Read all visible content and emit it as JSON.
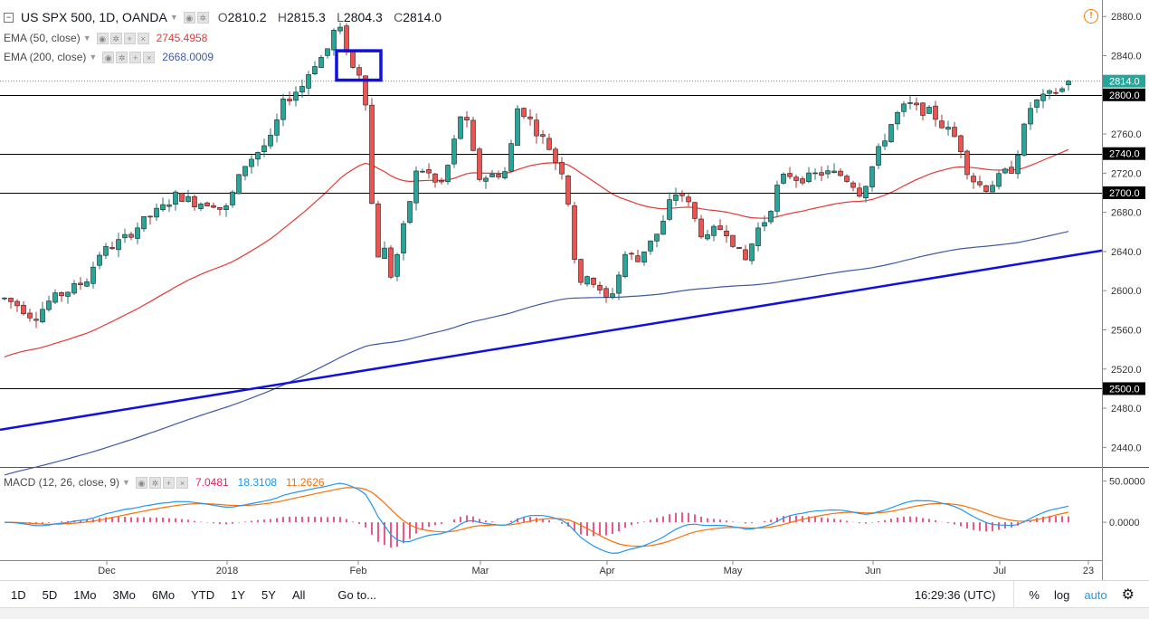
{
  "symbol": {
    "title": "US SPX 500, 1D, OANDA"
  },
  "ohlc": {
    "o_label": "O",
    "o": "2810.2",
    "h_label": "H",
    "h": "2815.3",
    "l_label": "L",
    "l": "2804.3",
    "c_label": "C",
    "c": "2814.0"
  },
  "indicators": {
    "ema50": {
      "label": "EMA (50, close)",
      "value": "2745.4958",
      "color": "#e53935"
    },
    "ema200": {
      "label": "EMA (200, close)",
      "value": "2668.0009",
      "color": "#3f5aa8"
    },
    "macd": {
      "label": "MACD (12, 26, close, 9)",
      "hist": "7.0481",
      "macd": "18.3108",
      "signal": "11.2626",
      "hist_color": "#e91e63",
      "macd_color": "#2196f3",
      "signal_color": "#ff6d00"
    }
  },
  "price_axis": {
    "ticks": [
      "2880.0",
      "2840.0",
      "2800.0",
      "2760.0",
      "2720.0",
      "2680.0",
      "2640.0",
      "2600.0",
      "2560.0",
      "2520.0",
      "2480.0",
      "2440.0"
    ],
    "badges": [
      {
        "text": "2814.0",
        "bg": "#26a69a"
      },
      {
        "text": "2800.0",
        "bg": "#000000"
      },
      {
        "text": "2740.0",
        "bg": "#000000"
      },
      {
        "text": "2700.0",
        "bg": "#000000"
      },
      {
        "text": "2500.0",
        "bg": "#000000"
      }
    ]
  },
  "macd_axis": {
    "ticks": [
      "50.0000",
      "0.0000"
    ]
  },
  "time_axis": {
    "labels": [
      "Dec",
      "2018",
      "Feb",
      "Mar",
      "Apr",
      "May",
      "Jun",
      "Jul",
      "23"
    ]
  },
  "chart_data": {
    "type": "candlestick",
    "title": "US SPX 500, 1D, OANDA",
    "ylim": [
      2420,
      2895
    ],
    "up_color": "#26a69a",
    "down_color": "#ef5350",
    "horizontal_levels": [
      2800,
      2740,
      2700,
      2500
    ],
    "highlight_box_color": "#1010e0",
    "trendline_color": "#1010e0",
    "last_price": 2814.0,
    "macd_ylim": [
      -45,
      65
    ]
  },
  "bottom_bar": {
    "timeframes": [
      "1D",
      "5D",
      "1Mo",
      "3Mo",
      "6Mo",
      "YTD",
      "1Y",
      "5Y",
      "All"
    ],
    "goto": "Go to...",
    "time": "16:29:36 (UTC)",
    "percent": "%",
    "log": "log",
    "auto": "auto"
  }
}
